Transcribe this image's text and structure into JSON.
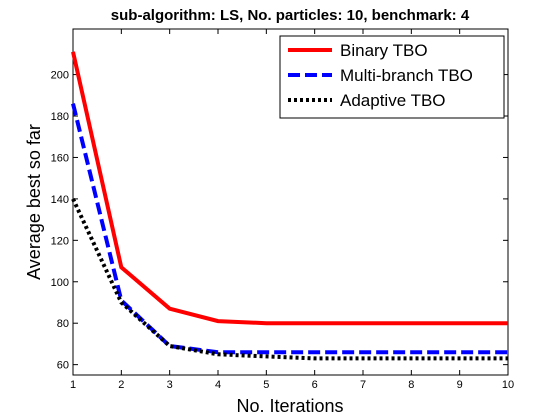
{
  "chart_data": {
    "type": "line",
    "title": "sub-algorithm: LS, No. particles: 10, benchmark: 4",
    "xlabel": "No. Iterations",
    "ylabel": "Average best so far",
    "xlim": [
      1,
      10
    ],
    "ylim": [
      55,
      222
    ],
    "x": [
      1,
      2,
      3,
      4,
      5,
      6,
      7,
      8,
      9,
      10
    ],
    "xticks": [
      1,
      2,
      3,
      4,
      5,
      6,
      7,
      8,
      9,
      10
    ],
    "yticks": [
      60,
      80,
      100,
      120,
      140,
      160,
      180,
      200
    ],
    "grid": false,
    "legend_position": "top-right",
    "series": [
      {
        "name": "Binary TBO",
        "color": "#ff0000",
        "style": "solid",
        "values": [
          211,
          107,
          87,
          81,
          80,
          80,
          80,
          80,
          80,
          80
        ]
      },
      {
        "name": "Multi-branch TBO",
        "color": "#0000ff",
        "style": "dashed",
        "values": [
          186,
          91,
          69,
          66,
          66,
          66,
          66,
          66,
          66,
          66
        ]
      },
      {
        "name": "Adaptive TBO",
        "color": "#000000",
        "style": "dotted",
        "values": [
          140,
          90,
          69,
          65,
          64,
          63,
          63,
          63,
          63,
          63
        ]
      }
    ]
  }
}
